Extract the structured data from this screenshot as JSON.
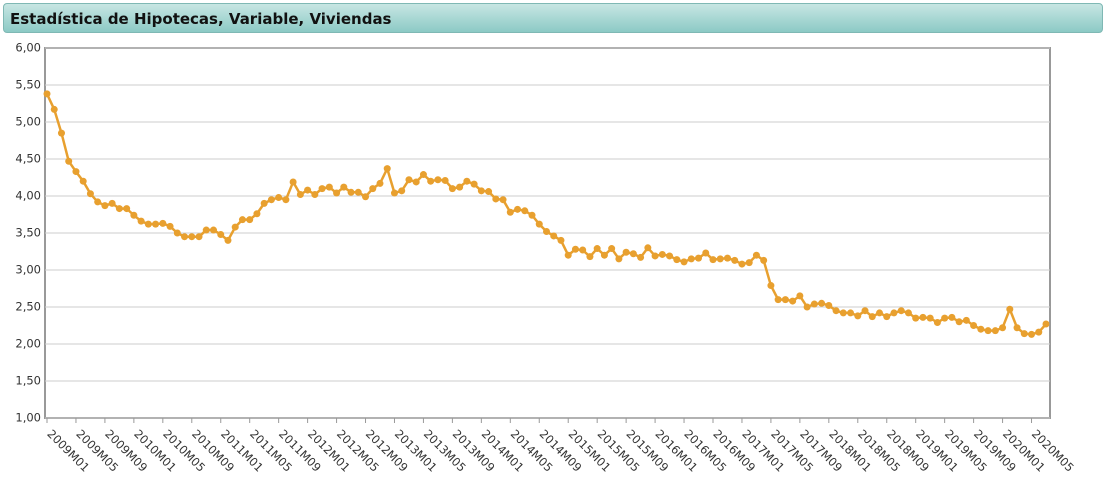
{
  "chart_data": {
    "type": "line",
    "title": "Estadística de Hipotecas, Variable, Viviendas",
    "categories": [
      "2009M01",
      null,
      null,
      null,
      "2009M05",
      null,
      null,
      null,
      "2009M09",
      null,
      null,
      null,
      "2010M01",
      null,
      null,
      null,
      "2010M05",
      null,
      null,
      null,
      "2010M09",
      null,
      null,
      null,
      "2011M01",
      null,
      null,
      null,
      "2011M05",
      null,
      null,
      null,
      "2011M09",
      null,
      null,
      null,
      "2012M01",
      null,
      null,
      null,
      "2012M05",
      null,
      null,
      null,
      "2012M09",
      null,
      null,
      null,
      "2013M01",
      null,
      null,
      null,
      "2013M05",
      null,
      null,
      null,
      "2013M09",
      null,
      null,
      null,
      "2014M01",
      null,
      null,
      null,
      "2014M05",
      null,
      null,
      null,
      "2014M09",
      null,
      null,
      null,
      "2015M01",
      null,
      null,
      null,
      "2015M05",
      null,
      null,
      null,
      "2015M09",
      null,
      null,
      null,
      "2016M01",
      null,
      null,
      null,
      "2016M05",
      null,
      null,
      null,
      "2016M09",
      null,
      null,
      null,
      "2017M01",
      null,
      null,
      null,
      "2017M05",
      null,
      null,
      null,
      "2017M09",
      null,
      null,
      null,
      "2018M01",
      null,
      null,
      null,
      "2018M05",
      null,
      null,
      null,
      "2018M09",
      null,
      null,
      null,
      "2019M01",
      null,
      null,
      null,
      "2019M05",
      null,
      null,
      null,
      "2019M09",
      null,
      null,
      null,
      "2020M01",
      null,
      null,
      null,
      "2020M05",
      null,
      null
    ],
    "values": [
      5.38,
      5.17,
      4.85,
      4.47,
      4.33,
      4.2,
      4.03,
      3.92,
      3.87,
      3.9,
      3.83,
      3.83,
      3.74,
      3.66,
      3.62,
      3.62,
      3.63,
      3.59,
      3.5,
      3.45,
      3.45,
      3.45,
      3.54,
      3.54,
      3.48,
      3.4,
      3.58,
      3.68,
      3.68,
      3.76,
      3.9,
      3.95,
      3.98,
      3.95,
      4.19,
      4.02,
      4.08,
      4.02,
      4.1,
      4.12,
      4.04,
      4.12,
      4.05,
      4.05,
      3.99,
      4.1,
      4.17,
      4.37,
      4.04,
      4.07,
      4.22,
      4.19,
      4.29,
      4.2,
      4.22,
      4.21,
      4.1,
      4.12,
      4.2,
      4.16,
      4.07,
      4.06,
      3.96,
      3.95,
      3.78,
      3.82,
      3.8,
      3.74,
      3.62,
      3.52,
      3.46,
      3.4,
      3.2,
      3.28,
      3.27,
      3.18,
      3.29,
      3.2,
      3.29,
      3.15,
      3.24,
      3.22,
      3.17,
      3.3,
      3.19,
      3.21,
      3.19,
      3.14,
      3.11,
      3.15,
      3.16,
      3.23,
      3.14,
      3.15,
      3.16,
      3.13,
      3.08,
      3.1,
      3.2,
      3.13,
      2.79,
      2.6,
      2.6,
      2.58,
      2.65,
      2.5,
      2.54,
      2.55,
      2.52,
      2.45,
      2.42,
      2.42,
      2.38,
      2.45,
      2.37,
      2.42,
      2.37,
      2.42,
      2.45,
      2.42,
      2.35,
      2.36,
      2.35,
      2.29,
      2.35,
      2.36,
      2.3,
      2.32,
      2.25,
      2.2,
      2.18,
      2.18,
      2.22,
      2.47,
      2.22,
      2.14,
      2.13,
      2.16,
      2.27
    ],
    "color": "#e8a02f",
    "ylim": [
      1,
      6
    ],
    "yticks": [
      {
        "value": 1,
        "label": "1,00"
      },
      {
        "value": 1.5,
        "label": "1,50"
      },
      {
        "value": 2,
        "label": "2,00"
      },
      {
        "value": 2.5,
        "label": "2,50"
      },
      {
        "value": 3,
        "label": "3,00"
      },
      {
        "value": 3.5,
        "label": "3,50"
      },
      {
        "value": 4,
        "label": "4,00"
      },
      {
        "value": 4.5,
        "label": "4,50"
      },
      {
        "value": 5,
        "label": "5,00"
      },
      {
        "value": 5.5,
        "label": "5,50"
      },
      {
        "value": 6,
        "label": "6,00"
      }
    ],
    "grid": true
  }
}
